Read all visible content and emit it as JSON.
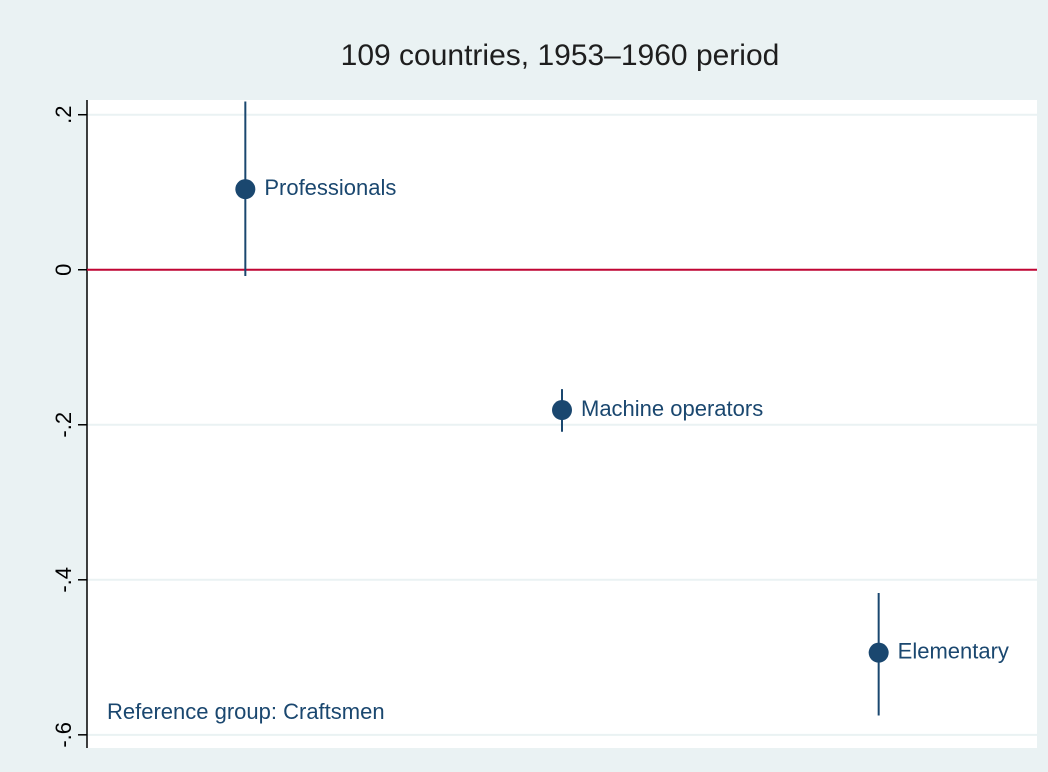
{
  "chart_data": {
    "type": "coefplot",
    "title": "109 countries, 1953–1960 period",
    "annotation": "Reference group:  Craftsmen",
    "categories": [
      "Professionals",
      "Machine operators",
      "Elementary"
    ],
    "values": [
      0.104,
      -0.181,
      -0.494
    ],
    "lower": [
      -0.008,
      -0.209,
      -0.575
    ],
    "upper": [
      0.217,
      -0.154,
      -0.417
    ],
    "color": "#1a476f",
    "reference_line": 0,
    "reference_color": "#c10534",
    "ylim": [
      -0.617,
      0.219
    ],
    "yticks": [
      {
        "value": 0.2,
        "label": ".2"
      },
      0,
      {
        "value": -0.2,
        "label": "-.2"
      },
      {
        "value": -0.4,
        "label": "-.4"
      },
      {
        "value": -0.6,
        "label": "-.6"
      }
    ],
    "grid": true
  }
}
